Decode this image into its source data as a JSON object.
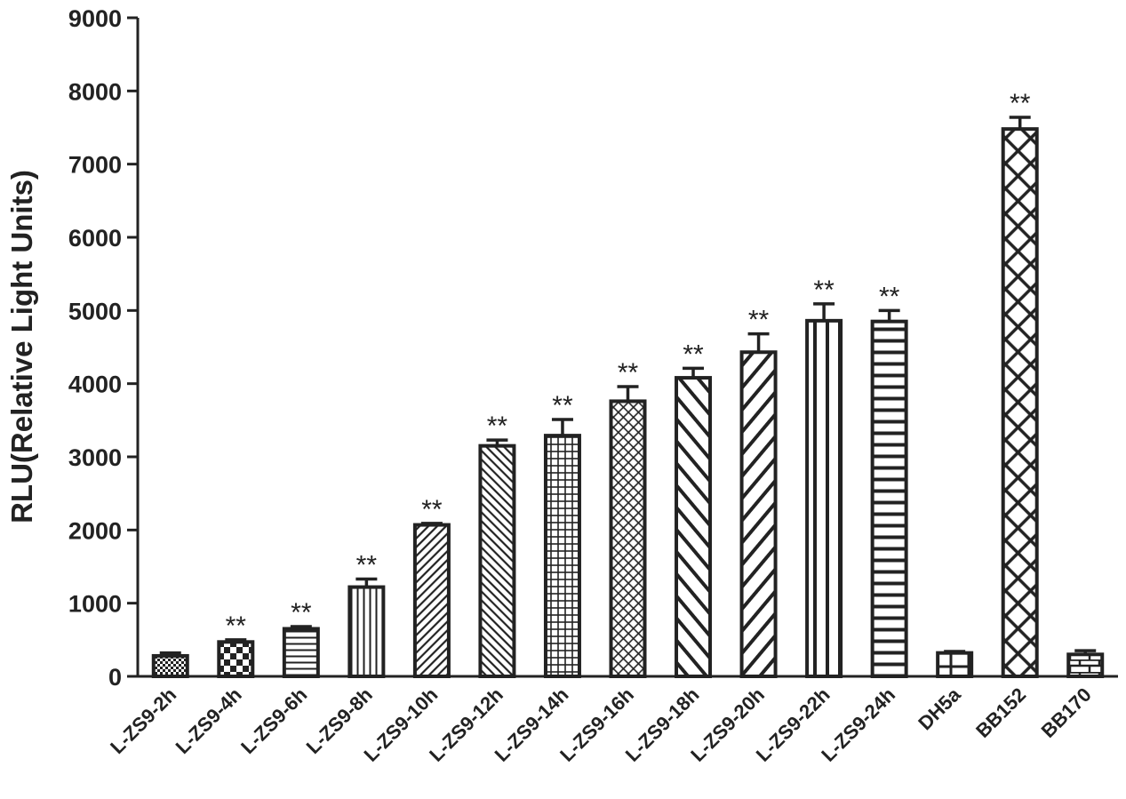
{
  "chart_data": {
    "type": "bar",
    "title": "",
    "xlabel": "",
    "ylabel": "RLU(Relative Light Units)",
    "ylim": [
      0,
      9000
    ],
    "yticks": [
      "0",
      "1000",
      "2000",
      "3000",
      "4000",
      "5000",
      "6000",
      "7000",
      "8000",
      "9000"
    ],
    "grid": false,
    "legend": "none",
    "categories": [
      "L-ZS9-2h",
      "L-ZS9-4h",
      "L-ZS9-6h",
      "L-ZS9-8h",
      "L-ZS9-10h",
      "L-ZS9-12h",
      "L-ZS9-14h",
      "L-ZS9-16h",
      "L-ZS9-18h",
      "L-ZS9-20h",
      "L-ZS9-22h",
      "L-ZS9-24h",
      "DH5a",
      "BB152",
      "BB170"
    ],
    "series": [
      {
        "values": [
          280,
          470,
          650,
          1220,
          2070,
          3150,
          3290,
          3760,
          4080,
          4430,
          4860,
          4850,
          320,
          7480,
          300
        ],
        "errors": [
          40,
          30,
          30,
          110,
          20,
          80,
          220,
          200,
          130,
          250,
          230,
          150,
          20,
          160,
          50
        ],
        "annotations": [
          "",
          "**",
          "**",
          "**",
          "**",
          "**",
          "**",
          "**",
          "**",
          "**",
          "**",
          "**",
          "",
          "**",
          ""
        ],
        "patterns": [
          "dots",
          "checker",
          "hlines",
          "vlines",
          "diag-fine",
          "diag-back-fine",
          "grid",
          "crosshatch-fine",
          "diag-back",
          "diag",
          "vlines-wide",
          "hlines-wide",
          "grid-wide",
          "crosshatch",
          "brick"
        ]
      }
    ]
  },
  "colors": {
    "ink": "#222222",
    "background": "#ffffff"
  }
}
